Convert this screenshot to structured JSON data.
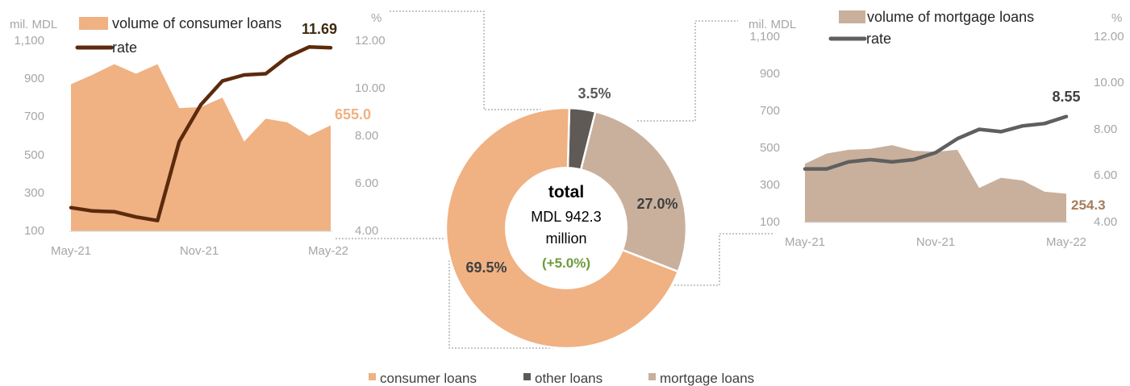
{
  "colors": {
    "consumer_area": "#F0B183",
    "consumer_rate": "#5C2A0C",
    "mortgage_area": "#C9B09C",
    "mortgage_rate": "#5F5F5F",
    "other": "#5F5A55",
    "axis_text": "#A6A6A6",
    "green": "#6E9B3A",
    "dark_text": "#404040"
  },
  "chart_data": [
    {
      "type": "area",
      "panel": "consumer",
      "left_unit": "mil. MDL",
      "right_unit": "%",
      "x_tick_labels": [
        "May-21",
        "Nov-21",
        "May-22"
      ],
      "left_ticks": [
        "100",
        "300",
        "500",
        "700",
        "900",
        "1,100"
      ],
      "right_ticks": [
        "4.00",
        "6.00",
        "8.00",
        "10.00",
        "12.00"
      ],
      "ylim_left": [
        100,
        1100
      ],
      "ylim_right": [
        4,
        12
      ],
      "x": [
        "May-21",
        "Jun-21",
        "Jul-21",
        "Aug-21",
        "Sep-21",
        "Oct-21",
        "Nov-21",
        "Dec-21",
        "Jan-22",
        "Feb-22",
        "Mar-22",
        "Apr-22",
        "May-22"
      ],
      "series": [
        {
          "name": "volume of consumer loans",
          "axis": "left",
          "kind": "area",
          "values": [
            870,
            920,
            975,
            925,
            975,
            745,
            750,
            800,
            570,
            690,
            670,
            600,
            655
          ]
        },
        {
          "name": "rate",
          "axis": "right",
          "kind": "line",
          "values": [
            4.99,
            4.85,
            4.82,
            4.6,
            4.45,
            7.75,
            9.3,
            10.3,
            10.55,
            10.6,
            11.3,
            11.72,
            11.69
          ]
        }
      ],
      "end_labels": {
        "volume": "655.0",
        "rate": "11.69"
      }
    },
    {
      "type": "pie",
      "panel": "total",
      "center": {
        "title": "total",
        "line1": "MDL 942.3",
        "line2": "million",
        "change": "(+5.0%)"
      },
      "slices": [
        {
          "name": "consumer loans",
          "value": 69.5,
          "label": "69.5%"
        },
        {
          "name": "other loans",
          "value": 3.5,
          "label": "3.5%"
        },
        {
          "name": "mortgage loans",
          "value": 27.0,
          "label": "27.0%"
        }
      ],
      "legend": [
        "consumer loans",
        "other loans",
        "mortgage loans"
      ]
    },
    {
      "type": "area",
      "panel": "mortgage",
      "left_unit": "mil. MDL",
      "right_unit": "%",
      "x_tick_labels": [
        "May-21",
        "Nov-21",
        "May-22"
      ],
      "left_ticks": [
        "100",
        "300",
        "500",
        "700",
        "900",
        "1,100"
      ],
      "right_ticks": [
        "4.00",
        "6.00",
        "8.00",
        "10.00",
        "12.00"
      ],
      "ylim_left": [
        100,
        1100
      ],
      "ylim_right": [
        4,
        12
      ],
      "x": [
        "May-21",
        "Jun-21",
        "Jul-21",
        "Aug-21",
        "Sep-21",
        "Oct-21",
        "Nov-21",
        "Dec-21",
        "Jan-22",
        "Feb-22",
        "Mar-22",
        "Apr-22",
        "May-22"
      ],
      "series": [
        {
          "name": "volume of mortgage loans",
          "axis": "left",
          "kind": "area",
          "values": [
            415,
            470,
            490,
            495,
            515,
            485,
            480,
            490,
            285,
            340,
            325,
            265,
            254.3
          ]
        },
        {
          "name": "rate",
          "axis": "right",
          "kind": "line",
          "values": [
            6.3,
            6.3,
            6.6,
            6.7,
            6.6,
            6.7,
            7.0,
            7.6,
            8.0,
            7.9,
            8.15,
            8.25,
            8.55
          ]
        }
      ],
      "end_labels": {
        "volume": "254.3",
        "rate": "8.55"
      }
    }
  ]
}
